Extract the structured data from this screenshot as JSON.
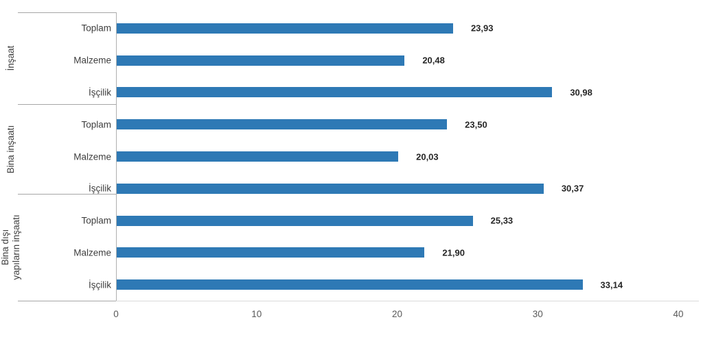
{
  "chart_data": {
    "type": "bar",
    "orientation": "horizontal",
    "groups": [
      {
        "label": "İnşaat",
        "rows": [
          {
            "category": "Toplam",
            "value": 23.93,
            "value_label": "23,93"
          },
          {
            "category": "Malzeme",
            "value": 20.48,
            "value_label": "20,48"
          },
          {
            "category": "İşçilik",
            "value": 30.98,
            "value_label": "30,98"
          }
        ]
      },
      {
        "label": "Bina inşaatı",
        "rows": [
          {
            "category": "Toplam",
            "value": 23.5,
            "value_label": "23,50"
          },
          {
            "category": "Malzeme",
            "value": 20.03,
            "value_label": "20,03"
          },
          {
            "category": "İşçilik",
            "value": 30.37,
            "value_label": "30,37"
          }
        ]
      },
      {
        "label": "Bina dışı\nyapıların inşaatı",
        "rows": [
          {
            "category": "Toplam",
            "value": 25.33,
            "value_label": "25,33"
          },
          {
            "category": "Malzeme",
            "value": 21.9,
            "value_label": "21,90"
          },
          {
            "category": "İşçilik",
            "value": 33.14,
            "value_label": "33,14"
          }
        ]
      }
    ],
    "x_axis": {
      "min": 0,
      "max": 40,
      "ticks": [
        0,
        10,
        20,
        30,
        40
      ],
      "tick_labels": [
        "0",
        "10",
        "20",
        "30",
        "40"
      ]
    },
    "legend": false,
    "grid": false,
    "colors": {
      "bar": "#2e79b5",
      "divider_line": "#a6a6a6",
      "axis_line": "#d9d9d9",
      "category_text": "#3f3f3f",
      "value_text": "#262626",
      "tick_text": "#595959"
    }
  }
}
